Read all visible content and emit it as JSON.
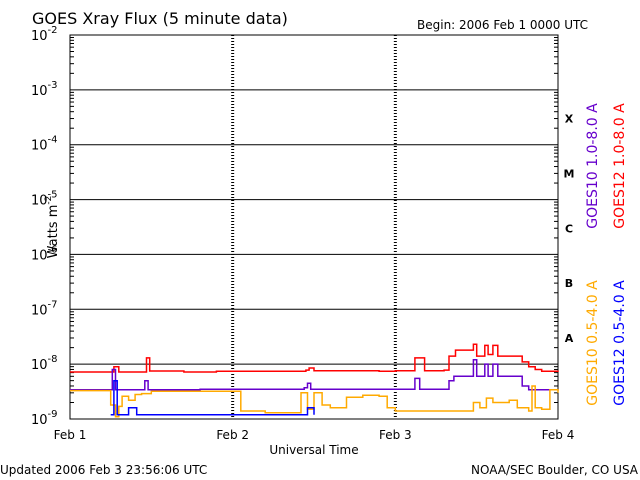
{
  "chart_data": {
    "type": "line",
    "title": "GOES Xray Flux (5 minute data)",
    "begin_label": "Begin:  2006 Feb 1 0000 UTC",
    "ylabel": "Watts m",
    "ylabel_sup": "-2",
    "xlabel": "Universal Time",
    "y_scale": "log",
    "ylim": [
      1e-09,
      0.01
    ],
    "y_ticks": [
      {
        "value": 0.01,
        "base": "10",
        "exp": "-2"
      },
      {
        "value": 0.001,
        "base": "10",
        "exp": "-3"
      },
      {
        "value": 0.0001,
        "base": "10",
        "exp": "-4"
      },
      {
        "value": 1e-05,
        "base": "10",
        "exp": "-5"
      },
      {
        "value": 1e-06,
        "base": "10",
        "exp": "-6"
      },
      {
        "value": 1e-07,
        "base": "10",
        "exp": "-7"
      },
      {
        "value": 1e-08,
        "base": "10",
        "exp": "-8"
      },
      {
        "value": 1e-09,
        "base": "10",
        "exp": "-9"
      }
    ],
    "xlim": [
      0,
      3
    ],
    "x_unit": "days since 2006 Feb 1 0000 UTC",
    "x_ticks": [
      {
        "value": 0,
        "label": "Feb 1"
      },
      {
        "value": 1,
        "label": "Feb 2"
      },
      {
        "value": 2,
        "label": "Feb 3"
      },
      {
        "value": 3,
        "label": "Feb 4"
      }
    ],
    "flare_classes": [
      {
        "label": "X",
        "value": 0.0003
      },
      {
        "label": "M",
        "value": 3e-05
      },
      {
        "label": "C",
        "value": 3e-06
      },
      {
        "label": "B",
        "value": 3e-07
      },
      {
        "label": "A",
        "value": 3e-08
      }
    ],
    "grid": {
      "horizontal_decades": true,
      "vertical_day_markers": true
    },
    "series": [
      {
        "name": "GOES12 1.0-8.0 A",
        "color": "#ff0000",
        "points": [
          [
            0,
            7.2e-09
          ],
          [
            0.25,
            7.2e-09
          ],
          [
            0.27,
            9e-09
          ],
          [
            0.3,
            7.2e-09
          ],
          [
            0.45,
            7.2e-09
          ],
          [
            0.47,
            1.3e-08
          ],
          [
            0.49,
            7.5e-09
          ],
          [
            0.7,
            7.2e-09
          ],
          [
            0.9,
            7.4e-09
          ],
          [
            1.2,
            7.4e-09
          ],
          [
            1.45,
            7.8e-09
          ],
          [
            1.47,
            8.5e-09
          ],
          [
            1.5,
            7.6e-09
          ],
          [
            1.9,
            7.4e-09
          ],
          [
            2.0,
            7.6e-09
          ],
          [
            2.1,
            7.6e-09
          ],
          [
            2.12,
            1.3e-08
          ],
          [
            2.16,
            1.3e-08
          ],
          [
            2.18,
            7.6e-09
          ],
          [
            2.3,
            7.8e-09
          ],
          [
            2.33,
            1.4e-08
          ],
          [
            2.37,
            1.8e-08
          ],
          [
            2.45,
            1.8e-08
          ],
          [
            2.48,
            2.3e-08
          ],
          [
            2.5,
            1.4e-08
          ],
          [
            2.55,
            2.2e-08
          ],
          [
            2.57,
            1.5e-08
          ],
          [
            2.6,
            2.2e-08
          ],
          [
            2.63,
            1.4e-08
          ],
          [
            2.7,
            1.4e-08
          ],
          [
            2.75,
            1.4e-08
          ],
          [
            2.78,
            1.1e-08
          ],
          [
            2.82,
            9e-09
          ],
          [
            2.86,
            8e-09
          ],
          [
            2.9,
            7.4e-09
          ],
          [
            3.0,
            7.2e-09
          ]
        ]
      },
      {
        "name": "GOES10 1.0-8.0 A",
        "color": "#6600cc",
        "points": [
          [
            0,
            3.4e-09
          ],
          [
            0.25,
            3.4e-09
          ],
          [
            0.26,
            8e-09
          ],
          [
            0.28,
            3.4e-09
          ],
          [
            0.45,
            3.4e-09
          ],
          [
            0.46,
            5e-09
          ],
          [
            0.48,
            3.4e-09
          ],
          [
            0.8,
            3.5e-09
          ],
          [
            1.0,
            3.5e-09
          ],
          [
            1.3,
            3.5e-09
          ],
          [
            1.44,
            3.7e-09
          ],
          [
            1.46,
            4.5e-09
          ],
          [
            1.48,
            3.5e-09
          ],
          [
            2.0,
            3.5e-09
          ],
          [
            2.1,
            3.5e-09
          ],
          [
            2.12,
            5.5e-09
          ],
          [
            2.15,
            3.5e-09
          ],
          [
            2.3,
            3.5e-09
          ],
          [
            2.33,
            5e-09
          ],
          [
            2.36,
            6e-09
          ],
          [
            2.45,
            6e-09
          ],
          [
            2.48,
            1.2e-08
          ],
          [
            2.5,
            6e-09
          ],
          [
            2.55,
            1e-08
          ],
          [
            2.57,
            6e-09
          ],
          [
            2.6,
            1e-08
          ],
          [
            2.63,
            6e-09
          ],
          [
            2.75,
            6e-09
          ],
          [
            2.78,
            4e-09
          ],
          [
            2.82,
            3.4e-09
          ],
          [
            3.0,
            3.3e-09
          ]
        ]
      },
      {
        "name": "GOES10 0.5-4.0 A",
        "color": "#ffaa00",
        "points": [
          [
            0,
            3.3e-09
          ],
          [
            0.2,
            3.3e-09
          ],
          [
            0.25,
            1.8e-09
          ],
          [
            0.28,
            1.1e-09
          ],
          [
            0.3,
            1.7e-09
          ],
          [
            0.32,
            2.6e-09
          ],
          [
            0.36,
            2.2e-09
          ],
          [
            0.4,
            2.8e-09
          ],
          [
            0.44,
            2.9e-09
          ],
          [
            0.48,
            2.9e-09
          ],
          [
            0.5,
            3.2e-09
          ],
          [
            0.6,
            3.2e-09
          ],
          [
            0.9,
            3.2e-09
          ],
          [
            1.0,
            3.2e-09
          ],
          [
            1.05,
            1.4e-09
          ],
          [
            1.2,
            1.3e-09
          ],
          [
            1.4,
            1.3e-09
          ],
          [
            1.42,
            3e-09
          ],
          [
            1.46,
            1.5e-09
          ],
          [
            1.5,
            3e-09
          ],
          [
            1.55,
            1.8e-09
          ],
          [
            1.6,
            1.6e-09
          ],
          [
            1.7,
            2.5e-09
          ],
          [
            1.8,
            2.7e-09
          ],
          [
            1.9,
            2.6e-09
          ],
          [
            1.95,
            1.6e-09
          ],
          [
            2.0,
            1.4e-09
          ],
          [
            2.3,
            1.4e-09
          ],
          [
            2.45,
            1.4e-09
          ],
          [
            2.48,
            2e-09
          ],
          [
            2.52,
            1.6e-09
          ],
          [
            2.56,
            2.4e-09
          ],
          [
            2.6,
            2e-09
          ],
          [
            2.7,
            2.2e-09
          ],
          [
            2.75,
            1.6e-09
          ],
          [
            2.82,
            1.4e-09
          ],
          [
            2.84,
            4e-09
          ],
          [
            2.86,
            1.6e-09
          ],
          [
            2.9,
            1.5e-09
          ],
          [
            2.95,
            3.4e-09
          ],
          [
            3.0,
            3e-09
          ]
        ]
      },
      {
        "name": "GOES12 0.5-4.0 A",
        "color": "#0000ff",
        "points": [
          [
            0.25,
            1.2e-09
          ],
          [
            0.265,
            1.2e-09
          ],
          [
            0.27,
            5e-09
          ],
          [
            0.285,
            5e-09
          ],
          [
            0.29,
            1.2e-09
          ],
          [
            0.3,
            1.2e-09
          ],
          [
            0.35,
            1.2e-09
          ],
          [
            0.36,
            1.6e-09
          ],
          [
            0.4,
            1.6e-09
          ],
          [
            0.41,
            1.2e-09
          ],
          [
            1.45,
            1.2e-09
          ],
          [
            1.46,
            1.6e-09
          ],
          [
            1.49,
            1.6e-09
          ],
          [
            1.5,
            1.2e-09
          ]
        ]
      }
    ],
    "legend": {
      "placement": "right",
      "upper": [
        "GOES10 1.0-8.0 A",
        "GOES12 1.0-8.0 A"
      ],
      "lower": [
        "GOES10 0.5-4.0 A",
        "GOES12 0.5-4.0 A"
      ]
    }
  },
  "footer": {
    "updated": "Updated 2006 Feb  3 23:56:06 UTC",
    "source": "NOAA/SEC Boulder, CO USA"
  }
}
